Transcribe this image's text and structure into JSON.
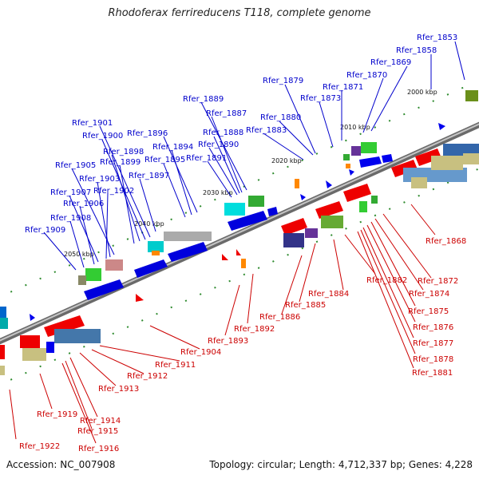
{
  "title": "Rhodoferax ferrireducens T118, complete genome",
  "footer": {
    "accession": "Accession: NC_007908",
    "summary": "Topology: circular; Length: 4,712,337 bp; Genes: 4,228"
  },
  "colors": {
    "forward_label": "#0000cc",
    "reverse_label": "#cc0000",
    "backbone": "#8f8f8f"
  },
  "kbp_marks": [
    "2000 kbp",
    "2010 kbp",
    "2020 kbp",
    "2030 kbp",
    "2040 kbp",
    "2050 kbp"
  ],
  "labels_top": [
    "Rfer_1853",
    "Rfer_1858",
    "Rfer_1869",
    "Rfer_1870",
    "Rfer_1871",
    "Rfer_1873",
    "Rfer_1879",
    "Rfer_1880",
    "Rfer_1883",
    "Rfer_1889",
    "Rfer_1887",
    "Rfer_1888",
    "Rfer_1890",
    "Rfer_1891",
    "Rfer_1896",
    "Rfer_1894",
    "Rfer_1895",
    "Rfer_1901",
    "Rfer_1900",
    "Rfer_1898",
    "Rfer_1899",
    "Rfer_1897",
    "Rfer_1905",
    "Rfer_1903",
    "Rfer_1902",
    "Rfer_1907",
    "Rfer_1906",
    "Rfer_1908",
    "Rfer_1909"
  ],
  "labels_bottom": [
    "Rfer_1868",
    "Rfer_1872",
    "Rfer_1874",
    "Rfer_1875",
    "Rfer_1876",
    "Rfer_1877",
    "Rfer_1878",
    "Rfer_1881",
    "Rfer_1882",
    "Rfer_1884",
    "Rfer_1885",
    "Rfer_1886",
    "Rfer_1892",
    "Rfer_1893",
    "Rfer_1904",
    "Rfer_1911",
    "Rfer_1912",
    "Rfer_1913",
    "Rfer_1919",
    "Rfer_1914",
    "Rfer_1915",
    "Rfer_1916",
    "Rfer_1922"
  ]
}
